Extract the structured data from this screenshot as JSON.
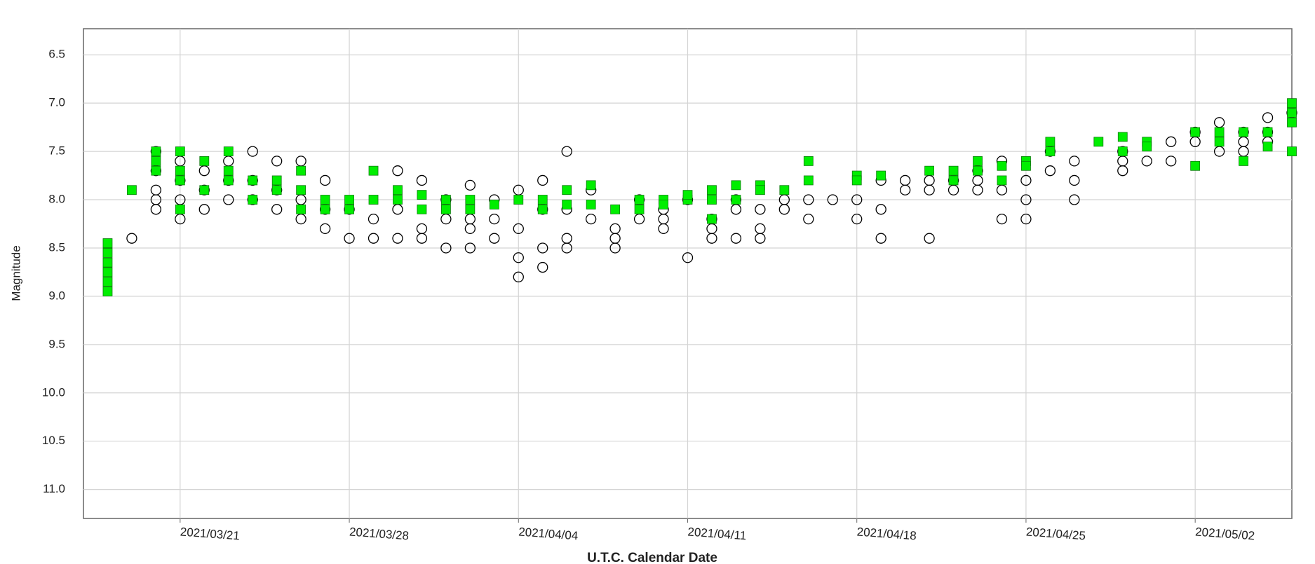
{
  "chart_data": {
    "type": "scatter",
    "ylabel": "Magnitude",
    "xlabel": "U.T.C. Calendar Date",
    "invert_y": true,
    "grid": true,
    "ylim": [
      6.23,
      11.3
    ],
    "yticks": [
      6.5,
      {
        "value": 7,
        "label": "7.0"
      },
      7.5,
      {
        "value": 8,
        "label": "8.0"
      },
      8.5,
      {
        "value": 9,
        "label": "9.0"
      },
      9.5,
      {
        "value": 10,
        "label": "10.0"
      },
      10.5,
      {
        "value": 11,
        "label": "11.0"
      }
    ],
    "xlim": [
      "2021/03/17",
      "2021/05/06"
    ],
    "xticks": [
      "2021/03/21",
      "2021/03/28",
      "2021/04/04",
      "2021/04/11",
      "2021/04/18",
      "2021/04/25",
      "2021/05/02"
    ],
    "series": [
      {
        "marker": "circle",
        "color": "#000000",
        "x": [
          "2021/03/19",
          "2021/03/20",
          "2021/03/20",
          "2021/03/20",
          "2021/03/20",
          "2021/03/20",
          "2021/03/21",
          "2021/03/21",
          "2021/03/21",
          "2021/03/21",
          "2021/03/22",
          "2021/03/22",
          "2021/03/22",
          "2021/03/23",
          "2021/03/23",
          "2021/03/23",
          "2021/03/24",
          "2021/03/24",
          "2021/03/24",
          "2021/03/25",
          "2021/03/25",
          "2021/03/25",
          "2021/03/26",
          "2021/03/26",
          "2021/03/26",
          "2021/03/27",
          "2021/03/27",
          "2021/03/27",
          "2021/03/28",
          "2021/03/28",
          "2021/03/29",
          "2021/03/29",
          "2021/03/30",
          "2021/03/30",
          "2021/03/30",
          "2021/03/31",
          "2021/03/31",
          "2021/03/31",
          "2021/04/01",
          "2021/04/01",
          "2021/04/01",
          "2021/04/02",
          "2021/04/02",
          "2021/04/02",
          "2021/04/02",
          "2021/04/03",
          "2021/04/03",
          "2021/04/03",
          "2021/04/04",
          "2021/04/04",
          "2021/04/04",
          "2021/04/04",
          "2021/04/05",
          "2021/04/05",
          "2021/04/05",
          "2021/04/05",
          "2021/04/06",
          "2021/04/06",
          "2021/04/06",
          "2021/04/06",
          "2021/04/07",
          "2021/04/07",
          "2021/04/08",
          "2021/04/08",
          "2021/04/08",
          "2021/04/09",
          "2021/04/09",
          "2021/04/10",
          "2021/04/10",
          "2021/04/10",
          "2021/04/11",
          "2021/04/11",
          "2021/04/12",
          "2021/04/12",
          "2021/04/12",
          "2021/04/13",
          "2021/04/13",
          "2021/04/13",
          "2021/04/14",
          "2021/04/14",
          "2021/04/14",
          "2021/04/15",
          "2021/04/15",
          "2021/04/16",
          "2021/04/16",
          "2021/04/17",
          "2021/04/18",
          "2021/04/18",
          "2021/04/19",
          "2021/04/19",
          "2021/04/19",
          "2021/04/20",
          "2021/04/20",
          "2021/04/21",
          "2021/04/21",
          "2021/04/21",
          "2021/04/22",
          "2021/04/22",
          "2021/04/23",
          "2021/04/23",
          "2021/04/23",
          "2021/04/24",
          "2021/04/24",
          "2021/04/24",
          "2021/04/25",
          "2021/04/25",
          "2021/04/25",
          "2021/04/26",
          "2021/04/26",
          "2021/04/27",
          "2021/04/27",
          "2021/04/27",
          "2021/04/29",
          "2021/04/29",
          "2021/04/29",
          "2021/04/30",
          "2021/05/01",
          "2021/05/01",
          "2021/05/02",
          "2021/05/02",
          "2021/05/03",
          "2021/05/03",
          "2021/05/04",
          "2021/05/04",
          "2021/05/04",
          "2021/05/05",
          "2021/05/05",
          "2021/05/05",
          "2021/05/06"
        ],
        "values": [
          8.4,
          7.5,
          7.7,
          8.0,
          7.9,
          8.1,
          7.8,
          8.0,
          7.6,
          8.2,
          7.7,
          7.9,
          8.1,
          7.6,
          8.0,
          7.8,
          7.5,
          7.8,
          8.0,
          7.6,
          7.9,
          8.1,
          7.6,
          8.0,
          8.2,
          7.8,
          8.3,
          8.1,
          8.4,
          8.1,
          8.2,
          8.4,
          8.4,
          7.7,
          8.1,
          8.3,
          7.8,
          8.4,
          8.5,
          8.0,
          8.2,
          8.2,
          7.85,
          8.5,
          8.3,
          8.2,
          8.0,
          8.4,
          8.8,
          8.6,
          7.9,
          8.3,
          8.5,
          8.7,
          7.8,
          8.1,
          8.4,
          7.5,
          8.1,
          8.5,
          7.9,
          8.2,
          8.4,
          8.5,
          8.3,
          8.2,
          8.0,
          8.1,
          8.3,
          8.2,
          8.6,
          8.0,
          8.4,
          8.2,
          8.3,
          8.1,
          8.4,
          8.0,
          8.4,
          8.3,
          8.1,
          8.1,
          8.0,
          8.2,
          8.0,
          8.0,
          8.0,
          8.2,
          7.8,
          8.4,
          8.1,
          7.8,
          7.9,
          7.8,
          8.4,
          7.9,
          7.8,
          7.9,
          7.8,
          7.7,
          7.9,
          8.2,
          7.6,
          7.9,
          8.2,
          7.8,
          8.0,
          7.5,
          7.7,
          7.6,
          8.0,
          7.8,
          7.6,
          7.5,
          7.7,
          7.6,
          7.6,
          7.4,
          7.3,
          7.4,
          7.2,
          7.5,
          7.3,
          7.4,
          7.5,
          7.15,
          7.3,
          7.4,
          7.1
        ]
      },
      {
        "marker": "square",
        "color": "#00ee00",
        "x": [
          "2021/03/18",
          "2021/03/18",
          "2021/03/18",
          "2021/03/18",
          "2021/03/18",
          "2021/03/18",
          "2021/03/19",
          "2021/03/20",
          "2021/03/20",
          "2021/03/20",
          "2021/03/21",
          "2021/03/21",
          "2021/03/21",
          "2021/03/21",
          "2021/03/22",
          "2021/03/22",
          "2021/03/23",
          "2021/03/23",
          "2021/03/23",
          "2021/03/24",
          "2021/03/24",
          "2021/03/25",
          "2021/03/25",
          "2021/03/26",
          "2021/03/26",
          "2021/03/26",
          "2021/03/27",
          "2021/03/27",
          "2021/03/28",
          "2021/03/28",
          "2021/03/29",
          "2021/03/29",
          "2021/03/30",
          "2021/03/30",
          "2021/03/31",
          "2021/03/31",
          "2021/04/01",
          "2021/04/01",
          "2021/04/02",
          "2021/04/02",
          "2021/04/03",
          "2021/04/04",
          "2021/04/05",
          "2021/04/05",
          "2021/04/06",
          "2021/04/06",
          "2021/04/07",
          "2021/04/07",
          "2021/04/08",
          "2021/04/09",
          "2021/04/09",
          "2021/04/10",
          "2021/04/10",
          "2021/04/11",
          "2021/04/11",
          "2021/04/12",
          "2021/04/12",
          "2021/04/12",
          "2021/04/13",
          "2021/04/13",
          "2021/04/14",
          "2021/04/14",
          "2021/04/15",
          "2021/04/16",
          "2021/04/16",
          "2021/04/18",
          "2021/04/18",
          "2021/04/19",
          "2021/04/21",
          "2021/04/22",
          "2021/04/22",
          "2021/04/23",
          "2021/04/23",
          "2021/04/24",
          "2021/04/24",
          "2021/04/25",
          "2021/04/25",
          "2021/04/26",
          "2021/04/26",
          "2021/04/28",
          "2021/04/29",
          "2021/04/29",
          "2021/04/30",
          "2021/04/30",
          "2021/05/02",
          "2021/05/02",
          "2021/05/03",
          "2021/05/03",
          "2021/05/04",
          "2021/05/04",
          "2021/05/05",
          "2021/05/05",
          "2021/05/06",
          "2021/05/06",
          "2021/05/06",
          "2021/05/06"
        ],
        "values": [
          8.95,
          8.85,
          8.75,
          8.65,
          8.55,
          8.45,
          7.9,
          7.5,
          7.6,
          7.7,
          7.5,
          7.8,
          8.1,
          7.7,
          7.6,
          7.9,
          7.5,
          7.8,
          7.7,
          7.8,
          8.0,
          7.8,
          7.9,
          7.7,
          8.1,
          7.9,
          8.0,
          8.1,
          8.1,
          8.0,
          7.7,
          8.0,
          7.9,
          8.0,
          7.95,
          8.1,
          8.0,
          8.1,
          8.1,
          8.0,
          8.05,
          8.0,
          8.0,
          8.1,
          7.9,
          8.05,
          7.85,
          8.05,
          8.1,
          8.1,
          8.0,
          8.0,
          8.05,
          8.0,
          7.95,
          7.9,
          8.2,
          8.0,
          7.85,
          8.0,
          7.85,
          7.9,
          7.9,
          7.6,
          7.8,
          7.75,
          7.8,
          7.75,
          7.7,
          7.7,
          7.8,
          7.6,
          7.7,
          7.65,
          7.8,
          7.6,
          7.65,
          7.4,
          7.5,
          7.4,
          7.35,
          7.5,
          7.4,
          7.45,
          7.3,
          7.65,
          7.3,
          7.4,
          7.3,
          7.6,
          7.3,
          7.45,
          7.2,
          7.1,
          7.0,
          7.5
        ]
      }
    ]
  }
}
